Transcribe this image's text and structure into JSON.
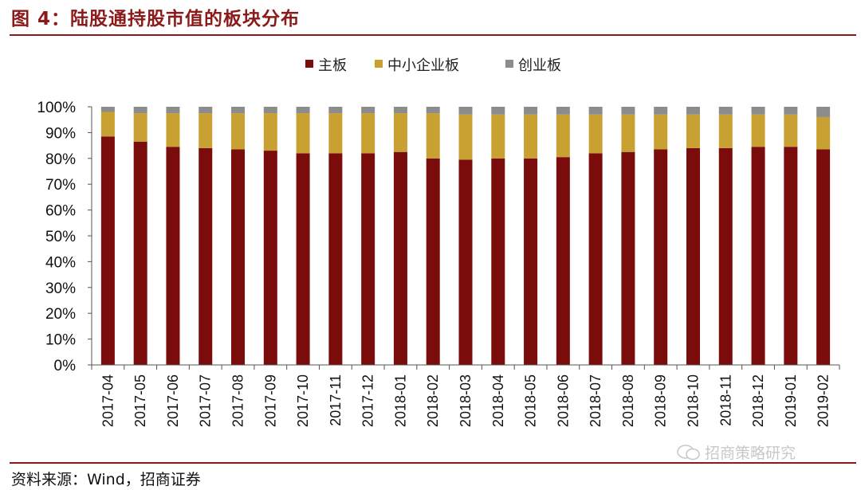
{
  "header": {
    "title": "图 4：陆股通持股市值的板块分布"
  },
  "footer": {
    "source": "资料来源：Wind，招商证券",
    "watermark": "招商策略研究"
  },
  "colors": {
    "main": "#7a0c0c",
    "sme": "#c9a133",
    "gem": "#8c8c8c",
    "rule": "#8b1a1a"
  },
  "chart_data": {
    "type": "bar",
    "stacked": true,
    "legend_position": "top",
    "grid": false,
    "categories": [
      "2017-04",
      "2017-05",
      "2017-06",
      "2017-07",
      "2017-08",
      "2017-09",
      "2017-10",
      "2017-11",
      "2017-12",
      "2018-01",
      "2018-02",
      "2018-03",
      "2018-04",
      "2018-05",
      "2018-06",
      "2018-07",
      "2018-08",
      "2018-09",
      "2018-10",
      "2018-11",
      "2018-12",
      "2019-01",
      "2019-02"
    ],
    "ylim": [
      0,
      100
    ],
    "yticks": [
      "0%",
      "10%",
      "20%",
      "30%",
      "40%",
      "50%",
      "60%",
      "70%",
      "80%",
      "90%",
      "100%"
    ],
    "series": [
      {
        "name": "主板",
        "color": "#7a0c0c",
        "values": [
          88.5,
          86.5,
          84.5,
          84,
          83.5,
          83,
          82,
          82,
          82,
          82.5,
          80,
          79.5,
          80,
          80,
          80.5,
          82,
          82.5,
          83.5,
          84,
          84,
          84.5,
          84.5,
          83.5
        ]
      },
      {
        "name": "中小企业板",
        "color": "#c9a133",
        "values": [
          9.5,
          11,
          13,
          13.5,
          14,
          14.5,
          15.5,
          15.5,
          15.5,
          15,
          17.5,
          17.5,
          17,
          17,
          16.5,
          15,
          14.5,
          13.5,
          13,
          13,
          12.5,
          12.5,
          12.5
        ]
      },
      {
        "name": "创业板",
        "color": "#8c8c8c",
        "values": [
          2,
          2.5,
          2.5,
          2.5,
          2.5,
          2.5,
          2.5,
          2.5,
          2.5,
          2.5,
          2.5,
          3,
          3,
          3,
          3,
          3,
          3,
          3,
          3,
          3,
          3,
          3,
          4
        ]
      }
    ]
  }
}
